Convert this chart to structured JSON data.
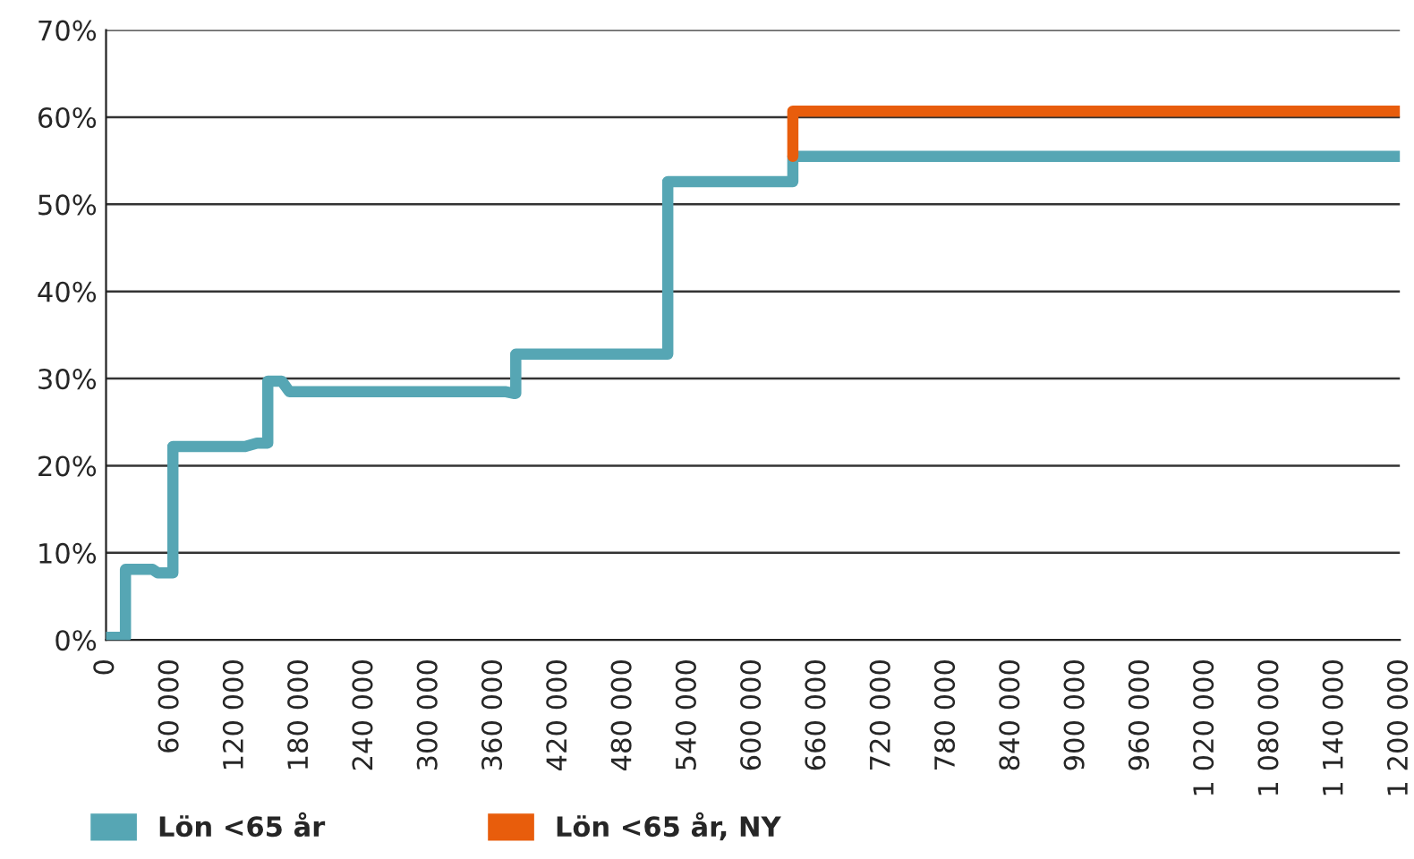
{
  "chart_data": {
    "type": "line",
    "xlim": [
      0,
      1200000
    ],
    "ylim": [
      0,
      70
    ],
    "xticks": [
      0,
      {
        "value": 60000,
        "label": "60 000"
      },
      {
        "value": 120000,
        "label": "120 000"
      },
      {
        "value": 180000,
        "label": "180 000"
      },
      {
        "value": 240000,
        "label": "240 000"
      },
      {
        "value": 300000,
        "label": "300 000"
      },
      {
        "value": 360000,
        "label": "360 000"
      },
      {
        "value": 420000,
        "label": "420 000"
      },
      {
        "value": 480000,
        "label": "480 000"
      },
      {
        "value": 540000,
        "label": "540 000"
      },
      {
        "value": 600000,
        "label": "600 000"
      },
      {
        "value": 660000,
        "label": "660 000"
      },
      {
        "value": 720000,
        "label": "720 000"
      },
      {
        "value": 780000,
        "label": "780 000"
      },
      {
        "value": 840000,
        "label": "840 000"
      },
      {
        "value": 900000,
        "label": "900 000"
      },
      {
        "value": 960000,
        "label": "960 000"
      },
      {
        "value": 1020000,
        "label": "1 020 000"
      },
      {
        "value": 1080000,
        "label": "1 080 000"
      },
      {
        "value": 1140000,
        "label": "1 140 000"
      },
      {
        "value": 1200000,
        "label": "1 200 000"
      }
    ],
    "yticks": [
      {
        "value": 0,
        "label": "0%"
      },
      {
        "value": 10,
        "label": "10%"
      },
      {
        "value": 20,
        "label": "20%"
      },
      {
        "value": 30,
        "label": "30%"
      },
      {
        "value": 40,
        "label": "40%"
      },
      {
        "value": 50,
        "label": "50%"
      },
      {
        "value": 60,
        "label": "60%"
      },
      {
        "value": 70,
        "label": "70%"
      }
    ],
    "grid": "y",
    "legend": "bottom",
    "marker": "none",
    "line_style": "solid",
    "series": [
      {
        "name": "Lön <65 år",
        "color": "#56a6b4",
        "x": [
          0,
          18000,
          18000,
          43000,
          48000,
          62000,
          62000,
          129000,
          140000,
          150000,
          150000,
          163000,
          170000,
          370000,
          378000,
          380000,
          380000,
          521000,
          521000,
          637000,
          637000,
          1200000
        ],
        "values": [
          0.3,
          0.3,
          8.1,
          8.1,
          7.7,
          7.7,
          22.2,
          22.2,
          22.6,
          22.6,
          29.7,
          29.7,
          28.5,
          28.5,
          28.3,
          28.3,
          32.8,
          32.8,
          52.6,
          52.6,
          55.5,
          55.5
        ]
      },
      {
        "name": "Lön <65 år, NY",
        "color": "#e85d0c",
        "x": [
          637000,
          637000,
          1200000
        ],
        "values": [
          55.5,
          60.7,
          60.7
        ]
      }
    ]
  }
}
